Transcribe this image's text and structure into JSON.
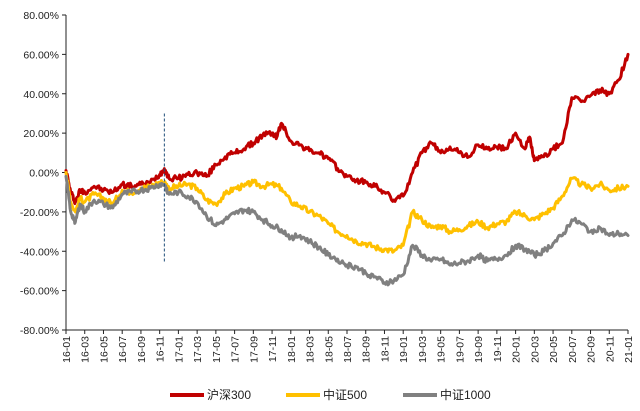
{
  "chart_data": {
    "type": "line",
    "title": "",
    "xlabel": "",
    "ylabel": "",
    "ylim": [
      -0.8,
      0.8
    ],
    "y_ticks": [
      0.8,
      0.6,
      0.4,
      0.2,
      0.0,
      -0.2,
      -0.4,
      -0.6,
      -0.8
    ],
    "y_tick_labels": [
      "80.00%",
      "60.00%",
      "40.00%",
      "20.00%",
      "0.00%",
      "-20.00%",
      "-40.00%",
      "-60.00%",
      "-80.00%"
    ],
    "x_tick_labels": [
      "16-01",
      "16-03",
      "16-05",
      "16-07",
      "16-09",
      "16-11",
      "17-01",
      "17-03",
      "17-05",
      "17-07",
      "17-09",
      "17-11",
      "18-01",
      "18-03",
      "18-05",
      "18-07",
      "18-09",
      "18-11",
      "19-01",
      "19-03",
      "19-05",
      "19-07",
      "19-09",
      "19-11",
      "20-01",
      "20-03",
      "20-05",
      "20-07",
      "20-09",
      "20-11",
      "21-01"
    ],
    "x_unit": "month index from 2016-01",
    "x_range": [
      0,
      60
    ],
    "marker_x": 10.5,
    "marker_y_range": [
      0.3,
      -0.46
    ],
    "series": [
      {
        "name": "沪深300",
        "color": "#C00000",
        "points": [
          [
            0,
            0.01
          ],
          [
            0.5,
            -0.1
          ],
          [
            1,
            -0.15
          ],
          [
            1.5,
            -0.09
          ],
          [
            2,
            -0.1
          ],
          [
            3,
            -0.07
          ],
          [
            4,
            -0.09
          ],
          [
            5,
            -0.1
          ],
          [
            6,
            -0.06
          ],
          [
            7,
            -0.07
          ],
          [
            8,
            -0.06
          ],
          [
            9,
            -0.05
          ],
          [
            10,
            -0.01
          ],
          [
            10.5,
            0.02
          ],
          [
            11,
            -0.03
          ],
          [
            12,
            -0.03
          ],
          [
            13,
            -0.01
          ],
          [
            14,
            0.0
          ],
          [
            15,
            -0.02
          ],
          [
            16,
            0.04
          ],
          [
            17,
            0.08
          ],
          [
            18,
            0.1
          ],
          [
            19,
            0.12
          ],
          [
            20,
            0.15
          ],
          [
            21,
            0.19
          ],
          [
            22,
            0.2
          ],
          [
            22.5,
            0.18
          ],
          [
            23,
            0.25
          ],
          [
            24,
            0.16
          ],
          [
            25,
            0.14
          ],
          [
            26,
            0.11
          ],
          [
            27,
            0.1
          ],
          [
            28,
            0.07
          ],
          [
            29,
            0.02
          ],
          [
            30,
            -0.02
          ],
          [
            31,
            -0.04
          ],
          [
            32,
            -0.05
          ],
          [
            33,
            -0.07
          ],
          [
            34,
            -0.1
          ],
          [
            35,
            -0.14
          ],
          [
            36,
            -0.12
          ],
          [
            37,
            0.0
          ],
          [
            38,
            0.1
          ],
          [
            39,
            0.15
          ],
          [
            40,
            0.1
          ],
          [
            41,
            0.13
          ],
          [
            42,
            0.1
          ],
          [
            43,
            0.08
          ],
          [
            44,
            0.14
          ],
          [
            45,
            0.12
          ],
          [
            46,
            0.13
          ],
          [
            47,
            0.12
          ],
          [
            48,
            0.2
          ],
          [
            49,
            0.12
          ],
          [
            49.5,
            0.18
          ],
          [
            50,
            0.06
          ],
          [
            51,
            0.08
          ],
          [
            52,
            0.12
          ],
          [
            53,
            0.15
          ],
          [
            54,
            0.38
          ],
          [
            55,
            0.36
          ],
          [
            56,
            0.39
          ],
          [
            57,
            0.42
          ],
          [
            58,
            0.4
          ],
          [
            59,
            0.47
          ],
          [
            60,
            0.6
          ]
        ]
      },
      {
        "name": "中证500",
        "color": "#FFC000",
        "points": [
          [
            0,
            0.0
          ],
          [
            0.5,
            -0.15
          ],
          [
            1,
            -0.2
          ],
          [
            1.5,
            -0.13
          ],
          [
            2,
            -0.15
          ],
          [
            3,
            -0.11
          ],
          [
            4,
            -0.13
          ],
          [
            5,
            -0.16
          ],
          [
            6,
            -0.09
          ],
          [
            7,
            -0.1
          ],
          [
            8,
            -0.08
          ],
          [
            9,
            -0.07
          ],
          [
            10,
            -0.05
          ],
          [
            10.5,
            -0.05
          ],
          [
            11,
            -0.08
          ],
          [
            12,
            -0.07
          ],
          [
            13,
            -0.06
          ],
          [
            14,
            -0.08
          ],
          [
            15,
            -0.14
          ],
          [
            16,
            -0.16
          ],
          [
            17,
            -0.11
          ],
          [
            18,
            -0.08
          ],
          [
            19,
            -0.07
          ],
          [
            20,
            -0.05
          ],
          [
            21,
            -0.07
          ],
          [
            22,
            -0.06
          ],
          [
            23,
            -0.08
          ],
          [
            24,
            -0.15
          ],
          [
            25,
            -0.17
          ],
          [
            26,
            -0.2
          ],
          [
            27,
            -0.22
          ],
          [
            28,
            -0.26
          ],
          [
            29,
            -0.3
          ],
          [
            30,
            -0.32
          ],
          [
            31,
            -0.35
          ],
          [
            32,
            -0.36
          ],
          [
            33,
            -0.38
          ],
          [
            34,
            -0.39
          ],
          [
            35,
            -0.4
          ],
          [
            36,
            -0.37
          ],
          [
            37,
            -0.2
          ],
          [
            38,
            -0.24
          ],
          [
            39,
            -0.28
          ],
          [
            40,
            -0.27
          ],
          [
            41,
            -0.3
          ],
          [
            42,
            -0.29
          ],
          [
            43,
            -0.27
          ],
          [
            44,
            -0.25
          ],
          [
            45,
            -0.28
          ],
          [
            46,
            -0.26
          ],
          [
            47,
            -0.25
          ],
          [
            48,
            -0.2
          ],
          [
            49,
            -0.22
          ],
          [
            50,
            -0.24
          ],
          [
            51,
            -0.21
          ],
          [
            52,
            -0.18
          ],
          [
            53,
            -0.12
          ],
          [
            54,
            -0.03
          ],
          [
            55,
            -0.06
          ],
          [
            56,
            -0.08
          ],
          [
            57,
            -0.06
          ],
          [
            58,
            -0.09
          ],
          [
            59,
            -0.08
          ],
          [
            60,
            -0.07
          ]
        ]
      },
      {
        "name": "中证1000",
        "color": "#808080",
        "points": [
          [
            0,
            -0.02
          ],
          [
            0.5,
            -0.2
          ],
          [
            1,
            -0.25
          ],
          [
            1.5,
            -0.16
          ],
          [
            2,
            -0.2
          ],
          [
            3,
            -0.14
          ],
          [
            4,
            -0.16
          ],
          [
            5,
            -0.18
          ],
          [
            6,
            -0.11
          ],
          [
            7,
            -0.1
          ],
          [
            8,
            -0.09
          ],
          [
            9,
            -0.08
          ],
          [
            10,
            -0.06
          ],
          [
            10.5,
            -0.06
          ],
          [
            11,
            -0.11
          ],
          [
            12,
            -0.1
          ],
          [
            13,
            -0.12
          ],
          [
            14,
            -0.15
          ],
          [
            15,
            -0.22
          ],
          [
            16,
            -0.27
          ],
          [
            17,
            -0.24
          ],
          [
            18,
            -0.21
          ],
          [
            19,
            -0.19
          ],
          [
            20,
            -0.2
          ],
          [
            21,
            -0.24
          ],
          [
            22,
            -0.27
          ],
          [
            23,
            -0.29
          ],
          [
            24,
            -0.33
          ],
          [
            25,
            -0.32
          ],
          [
            26,
            -0.35
          ],
          [
            27,
            -0.38
          ],
          [
            28,
            -0.42
          ],
          [
            29,
            -0.44
          ],
          [
            30,
            -0.47
          ],
          [
            31,
            -0.48
          ],
          [
            32,
            -0.51
          ],
          [
            33,
            -0.53
          ],
          [
            34,
            -0.56
          ],
          [
            35,
            -0.55
          ],
          [
            36,
            -0.52
          ],
          [
            37,
            -0.37
          ],
          [
            38,
            -0.42
          ],
          [
            39,
            -0.45
          ],
          [
            40,
            -0.44
          ],
          [
            41,
            -0.47
          ],
          [
            42,
            -0.46
          ],
          [
            43,
            -0.45
          ],
          [
            44,
            -0.42
          ],
          [
            45,
            -0.45
          ],
          [
            46,
            -0.44
          ],
          [
            47,
            -0.42
          ],
          [
            48,
            -0.37
          ],
          [
            49,
            -0.39
          ],
          [
            50,
            -0.42
          ],
          [
            51,
            -0.4
          ],
          [
            52,
            -0.36
          ],
          [
            53,
            -0.32
          ],
          [
            54,
            -0.24
          ],
          [
            55,
            -0.26
          ],
          [
            56,
            -0.3
          ],
          [
            57,
            -0.28
          ],
          [
            58,
            -0.32
          ],
          [
            59,
            -0.31
          ],
          [
            60,
            -0.32
          ]
        ]
      }
    ]
  }
}
